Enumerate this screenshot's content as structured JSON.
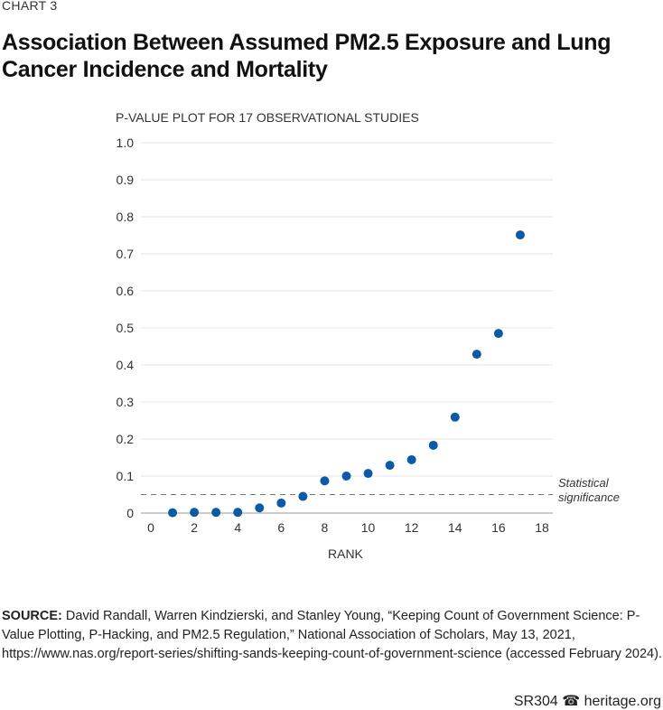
{
  "kicker": "CHART 3",
  "title": "Association Between Assumed PM2.5 Exposure and Lung Cancer Incidence and Mortality",
  "source": {
    "label": "SOURCE:",
    "text": " David Randall, Warren Kindzierski, and Stanley Young, “Keeping Count of Government Science: P-Value Plotting, P-Hacking, and PM2.5 Regulation,” National Association of Scholars, May 13, 2021, https://www.nas.org/report-series/shifting-sands-keeping-count-of-government-science (accessed February 2024)."
  },
  "footer": {
    "code": "SR304",
    "site": "heritage.org"
  },
  "chart_data": {
    "type": "scatter",
    "title": "P-VALUE PLOT FOR 17 OBSERVATIONAL STUDIES",
    "xlabel": "RANK",
    "ylabel": "",
    "xlim": [
      0,
      18
    ],
    "ylim": [
      0,
      1
    ],
    "xticks": [
      0,
      2,
      4,
      6,
      8,
      10,
      12,
      14,
      16,
      18
    ],
    "yticks": [
      0,
      0.1,
      0.2,
      0.3,
      0.4,
      0.5,
      0.6,
      0.7,
      0.8,
      0.9,
      1.0
    ],
    "ytick_labels": [
      "0",
      "0.1",
      "0.2",
      "0.3",
      "0.4",
      "0.5",
      "0.6",
      "0.7",
      "0.8",
      "0.9",
      "1.0"
    ],
    "grid": true,
    "x": [
      1,
      2,
      3,
      4,
      5,
      6,
      7,
      8,
      9,
      10,
      11,
      12,
      13,
      14,
      15,
      16,
      17
    ],
    "y": [
      0.001,
      0.002,
      0.002,
      0.002,
      0.014,
      0.027,
      0.045,
      0.087,
      0.1,
      0.107,
      0.129,
      0.144,
      0.183,
      0.259,
      0.429,
      0.485,
      0.751
    ],
    "reference_line": {
      "y": 0.05,
      "label_line1": "Statistical",
      "label_line2": "significance"
    },
    "color": "#0b5aa8"
  }
}
